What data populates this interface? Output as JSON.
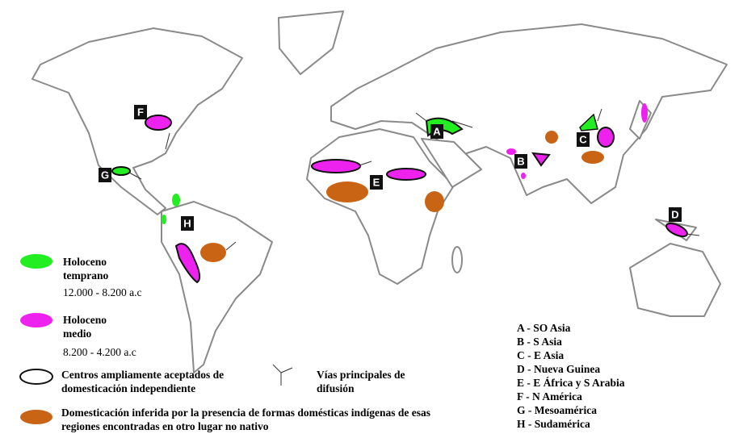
{
  "regions": [
    "A",
    "B",
    "C",
    "D",
    "E",
    "F",
    "G",
    "H"
  ],
  "legend": {
    "early": {
      "label": "Holoceno temprano",
      "period": "12.000 - 8.200 a.c"
    },
    "middle": {
      "label": "Holoceno medio",
      "period": "8.200 - 4.200 a.c"
    },
    "centers": "Centros ampliamente aceptados de domesticación independiente",
    "routes": "Vías principales de difusión",
    "inferred": "Domesticación inferida por la presencia de formas domésticas indígenas de esas regiones encontradas en otro lugar no nativo"
  },
  "key": [
    "A - SO Asia",
    "B - S Asia",
    "C - E Asia",
    "D - Nueva Guinea",
    "E - E África y S Arabia",
    "F - N América",
    "G - Mesoamérica",
    "H - Sudamérica"
  ]
}
